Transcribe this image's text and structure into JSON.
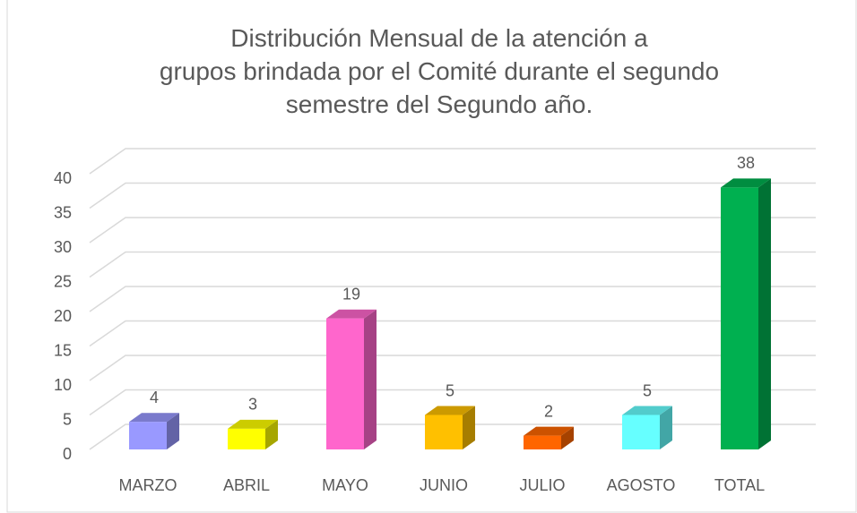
{
  "chart_data": {
    "type": "bar3d",
    "title": "Distribución Mensual de la atención a grupos brindada por el Comité durante el segundo semestre del Segundo año.",
    "categories": [
      "MARZO",
      "ABRIL",
      "MAYO",
      "JUNIO",
      "JULIO",
      "AGOSTO",
      "TOTAL"
    ],
    "values": [
      4,
      3,
      19,
      5,
      2,
      5,
      38
    ],
    "colors": [
      "#9999ff",
      "#ffff00",
      "#ff66cc",
      "#ffc000",
      "#ff6600",
      "#66ffff",
      "#00b050"
    ],
    "ylim": [
      0,
      40
    ],
    "yticks": [
      0,
      5,
      10,
      15,
      20,
      25,
      30,
      35,
      40
    ],
    "grid": true
  }
}
